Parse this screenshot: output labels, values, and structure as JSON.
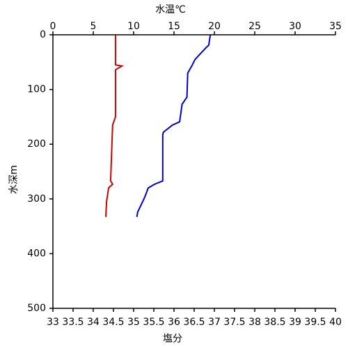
{
  "chart_data": {
    "type": "profile",
    "x_label": "塩分",
    "x_label_color": "#cc0000",
    "x2_label": "水温℃",
    "x2_label_color": "#0000cc",
    "y_label": "水深m",
    "xlim": [
      33,
      40
    ],
    "xticks": [
      33,
      33.5,
      34,
      34.5,
      35,
      35.5,
      36,
      36.5,
      37,
      37.5,
      38,
      38.5,
      39,
      39.5,
      40
    ],
    "x2lim": [
      0,
      35
    ],
    "x2ticks": [
      0,
      5,
      10,
      15,
      20,
      25,
      30,
      35
    ],
    "ylim": [
      0,
      500
    ],
    "yticks": [
      0,
      100,
      200,
      300,
      400,
      500
    ],
    "y_inverted": true,
    "series": [
      {
        "color": "#0000cc",
        "axis": "x2",
        "x": [
          19.5,
          19.3,
          19.0,
          17.6,
          17.2,
          16.7,
          16.6,
          16.0,
          15.7,
          14.8,
          13.7,
          13.6,
          13.6,
          12.6,
          11.8,
          11.4,
          10.9,
          10.5,
          10.4
        ],
        "y": [
          0,
          19,
          23,
          45,
          57,
          70,
          114,
          127,
          159,
          165,
          178,
          182,
          267,
          273,
          280,
          296,
          312,
          324,
          333
        ]
      },
      {
        "color": "#cc0000",
        "axis": "x",
        "x": [
          34.55,
          34.55,
          34.71,
          34.55,
          34.55,
          34.48,
          34.43,
          34.48,
          34.38,
          34.33,
          34.31
        ],
        "y": [
          0,
          55,
          57,
          64,
          150,
          165,
          267,
          273,
          280,
          305,
          333
        ]
      }
    ]
  }
}
